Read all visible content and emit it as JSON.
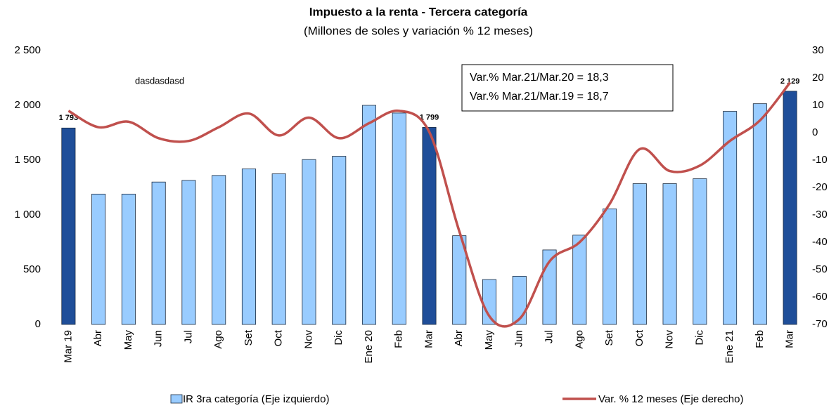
{
  "chart_data": {
    "type": "bar_line",
    "title": "Impuesto a la renta - Tercera categoría",
    "subtitle": "(Millones de soles y variación % 12 meses)",
    "categories": [
      "Mar 19",
      "Abr",
      "May",
      "Jun",
      "Jul",
      "Ago",
      "Set",
      "Oct",
      "Nov",
      "Dic",
      "Ene 20",
      "Feb",
      "Mar",
      "Abr",
      "May",
      "Jun",
      "Jul",
      "Ago",
      "Set",
      "Oct",
      "Nov",
      "Dic",
      "Ene 21",
      "Feb",
      "Mar"
    ],
    "series": [
      {
        "name": "IR 3ra categoría (Eje izquierdo)",
        "kind": "bar",
        "color": "#99ccff",
        "colors": [
          "#1f4e99",
          "#99ccff",
          "#99ccff",
          "#99ccff",
          "#99ccff",
          "#99ccff",
          "#99ccff",
          "#99ccff",
          "#99ccff",
          "#99ccff",
          "#99ccff",
          "#99ccff",
          "#1f4e99",
          "#99ccff",
          "#99ccff",
          "#99ccff",
          "#99ccff",
          "#99ccff",
          "#99ccff",
          "#99ccff",
          "#99ccff",
          "#99ccff",
          "#99ccff",
          "#99ccff",
          "#1f4e99"
        ],
        "values": [
          1793,
          1190,
          1190,
          1300,
          1315,
          1360,
          1420,
          1375,
          1505,
          1535,
          2000,
          1930,
          1799,
          810,
          410,
          440,
          680,
          815,
          1055,
          1285,
          1285,
          1330,
          1945,
          2015,
          2129
        ],
        "value_labels": [
          "1 793",
          null,
          null,
          null,
          null,
          null,
          null,
          null,
          null,
          null,
          null,
          null,
          "1 799",
          null,
          null,
          null,
          null,
          null,
          null,
          null,
          null,
          null,
          null,
          null,
          "2 129"
        ]
      },
      {
        "name": "Var. % 12 meses (Eje derecho)",
        "kind": "line",
        "axis": "y2",
        "color": "#c0504d",
        "values": [
          8,
          2,
          4,
          -2,
          -3,
          2,
          7,
          -1,
          5.5,
          -2,
          3.5,
          8,
          0.3,
          -36,
          -67,
          -68,
          -47,
          -40,
          -26,
          -6,
          -14,
          -12,
          -3,
          4.5,
          18.3
        ]
      }
    ],
    "ylim": [
      0,
      2500
    ],
    "yticks": [
      0,
      500,
      {
        "value": 1000,
        "label": "1 000"
      },
      {
        "value": 1500,
        "label": "1 500"
      },
      {
        "value": 2000,
        "label": "2 000"
      },
      {
        "value": 2500,
        "label": "2 500"
      }
    ],
    "y2lim": [
      -70,
      30
    ],
    "y2ticks": [
      -70,
      -60,
      -50,
      -40,
      -30,
      -20,
      -10,
      0,
      10,
      20,
      30
    ],
    "annotations": [
      "Var.% Mar.21/Mar.20 = 18,3",
      "Var.% Mar.21/Mar.19 = 18,7",
      "dasdasdasd"
    ],
    "legend": "bottom",
    "grid": false
  }
}
